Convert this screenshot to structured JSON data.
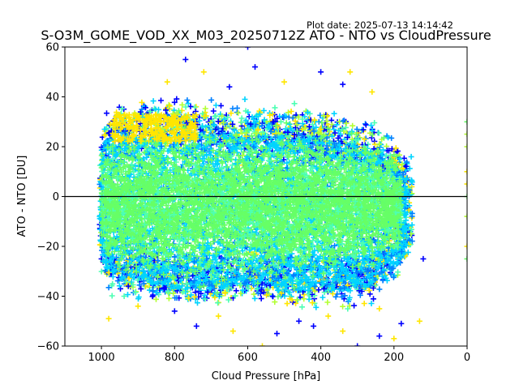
{
  "header": {
    "plot_date": "Plot date: 2025-07-13 14:14:42",
    "title": "S-O3M_GOME_VOD_XX_M03_20250712Z ATO - NTO vs CloudPressure"
  },
  "chart_data": {
    "type": "scatter",
    "marker": "+",
    "title": "S-O3M_GOME_VOD_XX_M03_20250712Z ATO - NTO vs CloudPressure",
    "xlabel": "Cloud Pressure [hPa]",
    "ylabel": "ATO - NTO [DU]",
    "xlim": [
      1100,
      0
    ],
    "ylim": [
      -60,
      60
    ],
    "x_reversed": true,
    "xticks": [
      1000,
      800,
      600,
      400,
      200,
      0
    ],
    "yticks": [
      -60,
      -40,
      -20,
      0,
      20,
      40,
      60
    ],
    "reference_line_y": 0,
    "grid": false,
    "legend": "none",
    "colors": [
      "#0000ff",
      "#0080ff",
      "#00d4ff",
      "#4dffb3",
      "#66ff66",
      "#b3ff33",
      "#ffe600"
    ],
    "density": [
      {
        "x": 1000,
        "ymin": -28,
        "ymax": 28
      },
      {
        "x": 960,
        "ymin": -35,
        "ymax": 33
      },
      {
        "x": 900,
        "ymin": -36,
        "ymax": 33
      },
      {
        "x": 800,
        "ymin": -40,
        "ymax": 36
      },
      {
        "x": 700,
        "ymin": -40,
        "ymax": 33
      },
      {
        "x": 600,
        "ymin": -38,
        "ymax": 32
      },
      {
        "x": 500,
        "ymin": -40,
        "ymax": 33
      },
      {
        "x": 400,
        "ymin": -40,
        "ymax": 31
      },
      {
        "x": 300,
        "ymin": -40,
        "ymax": 28
      },
      {
        "x": 250,
        "ymin": -36,
        "ymax": 25
      },
      {
        "x": 200,
        "ymin": -30,
        "ymax": 20
      },
      {
        "x": 160,
        "ymin": -20,
        "ymax": 12
      }
    ],
    "outliers": [
      [
        770,
        55
      ],
      [
        720,
        50
      ],
      [
        600,
        60
      ],
      [
        500,
        46
      ],
      [
        400,
        50
      ],
      [
        320,
        50
      ],
      [
        340,
        45
      ],
      [
        820,
        46
      ],
      [
        650,
        44
      ],
      [
        260,
        42
      ],
      [
        580,
        52
      ],
      [
        980,
        -49
      ],
      [
        740,
        -52
      ],
      [
        640,
        -54
      ],
      [
        520,
        -55
      ],
      [
        340,
        -54
      ],
      [
        300,
        -60
      ],
      [
        560,
        -60
      ],
      [
        240,
        -56
      ],
      [
        200,
        -57
      ],
      [
        180,
        -51
      ],
      [
        130,
        -50
      ],
      [
        120,
        -25
      ],
      [
        240,
        -45
      ],
      [
        460,
        -50
      ],
      [
        900,
        -44
      ],
      [
        800,
        -46
      ],
      [
        680,
        -48
      ],
      [
        420,
        -52
      ],
      [
        380,
        -48
      ],
      [
        0,
        30
      ],
      [
        0,
        20
      ],
      [
        0,
        10
      ],
      [
        0,
        0
      ],
      [
        0,
        -8
      ],
      [
        0,
        -20
      ],
      [
        0,
        -25
      ],
      [
        0,
        25
      ],
      [
        0,
        5
      ]
    ]
  }
}
